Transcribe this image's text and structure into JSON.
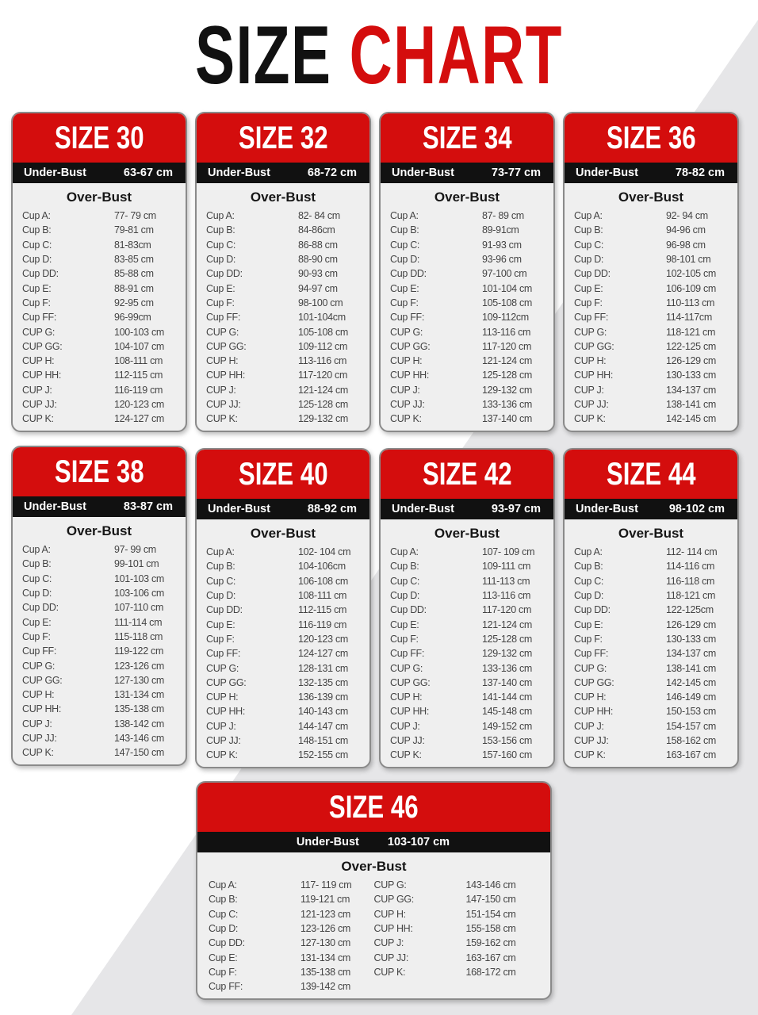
{
  "title": {
    "word1": "SIZE",
    "word2": "CHART"
  },
  "colors": {
    "red": "#d40d0d",
    "black": "#111111",
    "card_bg": "#efefef"
  },
  "under_bust_label": "Under-Bust",
  "over_bust_label": "Over-Bust",
  "cups": [
    "Cup A:",
    "Cup B:",
    "Cup C:",
    "Cup D:",
    "Cup DD:",
    "Cup E:",
    "Cup F:",
    "Cup FF:",
    "CUP G:",
    "CUP GG:",
    "CUP H:",
    "CUP HH:",
    "CUP J:",
    "CUP JJ:",
    "CUP K:"
  ],
  "sizes": [
    {
      "name": "SIZE 30",
      "under_bust": "63-67 cm",
      "values": [
        "77- 79 cm",
        "79-81 cm",
        "81-83cm",
        "83-85 cm",
        "85-88 cm",
        "88-91 cm",
        "92-95 cm",
        "96-99cm",
        "100-103 cm",
        "104-107 cm",
        "108-111 cm",
        "112-115 cm",
        "116-119 cm",
        "120-123 cm",
        "124-127 cm"
      ]
    },
    {
      "name": "SIZE 32",
      "under_bust": "68-72 cm",
      "values": [
        "82- 84 cm",
        "84-86cm",
        "86-88 cm",
        "88-90 cm",
        "90-93 cm",
        "94-97 cm",
        "98-100 cm",
        "101-104cm",
        "105-108 cm",
        "109-112 cm",
        "113-116 cm",
        "117-120 cm",
        "121-124 cm",
        "125-128 cm",
        "129-132 cm"
      ]
    },
    {
      "name": "SIZE 34",
      "under_bust": "73-77 cm",
      "values": [
        "87- 89 cm",
        "89-91cm",
        "91-93 cm",
        "93-96 cm",
        "97-100 cm",
        "101-104 cm",
        "105-108 cm",
        "109-112cm",
        "113-116 cm",
        "117-120 cm",
        "121-124 cm",
        "125-128 cm",
        "129-132 cm",
        "133-136 cm",
        "137-140 cm"
      ]
    },
    {
      "name": "SIZE 36",
      "under_bust": "78-82 cm",
      "values": [
        "92- 94 cm",
        "94-96 cm",
        "96-98 cm",
        "98-101 cm",
        "102-105 cm",
        "106-109 cm",
        "110-113 cm",
        "114-117cm",
        "118-121 cm",
        "122-125 cm",
        "126-129 cm",
        "130-133 cm",
        "134-137 cm",
        "138-141 cm",
        "142-145 cm"
      ]
    },
    {
      "name": "SIZE 38",
      "under_bust": "83-87 cm",
      "values": [
        "97- 99 cm",
        "99-101 cm",
        "101-103 cm",
        "103-106 cm",
        "107-110 cm",
        "111-114 cm",
        "115-118 cm",
        "119-122 cm",
        "123-126 cm",
        "127-130 cm",
        "131-134 cm",
        "135-138 cm",
        "138-142 cm",
        "143-146 cm",
        "147-150 cm"
      ]
    },
    {
      "name": "SIZE 40",
      "under_bust": "88-92 cm",
      "values": [
        "102- 104 cm",
        "104-106cm",
        "106-108 cm",
        "108-111 cm",
        "112-115 cm",
        "116-119 cm",
        "120-123 cm",
        "124-127 cm",
        "128-131 cm",
        "132-135 cm",
        "136-139 cm",
        "140-143 cm",
        "144-147 cm",
        "148-151 cm",
        "152-155 cm"
      ]
    },
    {
      "name": "SIZE 42",
      "under_bust": "93-97 cm",
      "values": [
        "107- 109 cm",
        "109-111 cm",
        "111-113 cm",
        "113-116 cm",
        "117-120 cm",
        "121-124 cm",
        "125-128 cm",
        "129-132 cm",
        "133-136 cm",
        "137-140 cm",
        "141-144 cm",
        "145-148 cm",
        "149-152 cm",
        "153-156 cm",
        "157-160 cm"
      ]
    },
    {
      "name": "SIZE 44",
      "under_bust": "98-102 cm",
      "values": [
        "112- 114 cm",
        "114-116 cm",
        "116-118 cm",
        "118-121 cm",
        "122-125cm",
        "126-129 cm",
        "130-133 cm",
        "134-137 cm",
        "138-141 cm",
        "142-145 cm",
        "146-149 cm",
        "150-153 cm",
        "154-157 cm",
        "158-162 cm",
        "163-167 cm"
      ]
    },
    {
      "name": "SIZE 46",
      "under_bust": "103-107 cm",
      "values": [
        "117- 119 cm",
        "119-121 cm",
        "121-123 cm",
        "123-126 cm",
        "127-130 cm",
        "131-134 cm",
        "135-138 cm",
        "139-142 cm",
        "143-146 cm",
        "147-150 cm",
        "151-154 cm",
        "155-158 cm",
        "159-162 cm",
        "163-167 cm",
        "168-172 cm"
      ]
    }
  ]
}
